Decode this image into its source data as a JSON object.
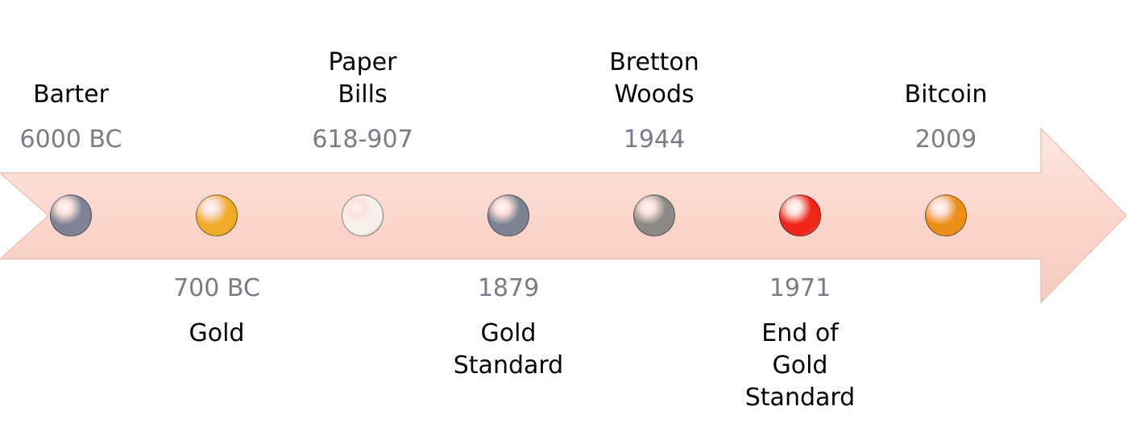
{
  "events": [
    {
      "label": "Barter",
      "year": "6000 BC",
      "color": "#7e8294",
      "side": "above"
    },
    {
      "label": "Gold",
      "year": "700 BC",
      "color": "#f2ab2a",
      "side": "below"
    },
    {
      "label": "Paper Bills",
      "year": "618-907",
      "color": "#f7f1ee",
      "side": "above"
    },
    {
      "label": "Gold Standard",
      "year": "1879",
      "color": "#7d8293",
      "side": "below"
    },
    {
      "label": "Bretton Woods",
      "year": "1944",
      "color": "#8b8a86",
      "side": "above"
    },
    {
      "label": "End of Gold Standard",
      "year": "1971",
      "color": "#f0261a",
      "side": "below"
    },
    {
      "label": "Bitcoin",
      "year": "2009",
      "color": "#ec8f18",
      "side": "above"
    }
  ],
  "colors": {
    "arrow_fill": "#fbd9d0",
    "arrow_stroke": "#ecc4b8",
    "year_text": "#7a7b86",
    "label_text": "#000000"
  }
}
